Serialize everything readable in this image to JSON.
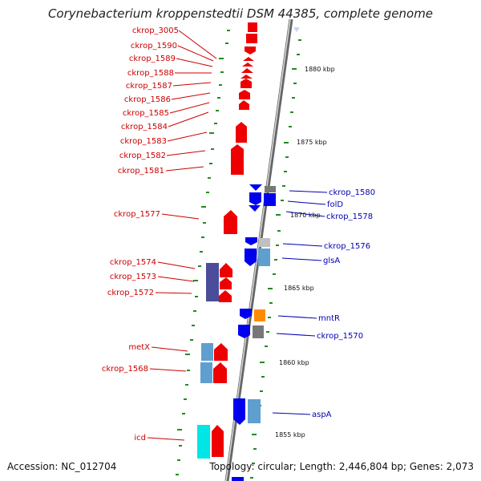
{
  "title": "Corynebacterium kroppenstedtii DSM 44385, complete genome",
  "footer": {
    "accession": "Accession: NC_012704",
    "summary": "Topology: circular; Length: 2,446,804 bp; Genes: 2,073"
  },
  "colors": {
    "axis": "#888888",
    "forward_gene": "#ee0000",
    "reverse_gene": "#0000ee",
    "rna_gene": "#5f9fd0",
    "pseudo_gene": "#777777",
    "other_gene": "#ff8c00",
    "dark_gene": "#4b4d9a",
    "cyan_gene": "#00e6e6",
    "tick": "#228b22"
  },
  "scale_labels": [
    "1880 kbp",
    "1875 kbp",
    "1870 kbp",
    "1865 kbp",
    "1860 kbp",
    "1855 kbp"
  ],
  "left_labels": [
    "ckrop_3005",
    "ckrop_1590",
    "ckrop_1589",
    "ckrop_1588",
    "ckrop_1587",
    "ckrop_1586",
    "ckrop_1585",
    "ckrop_1584",
    "ckrop_1583",
    "ckrop_1582",
    "ckrop_1581",
    "ckrop_1577",
    "ckrop_1574",
    "ckrop_1573",
    "ckrop_1572",
    "metX",
    "ckrop_1568",
    "icd"
  ],
  "right_labels": [
    "ckrop_1580",
    "folD",
    "ckrop_1578",
    "ckrop_1576",
    "glsA",
    "mntR",
    "ckrop_1570",
    "aspA"
  ]
}
